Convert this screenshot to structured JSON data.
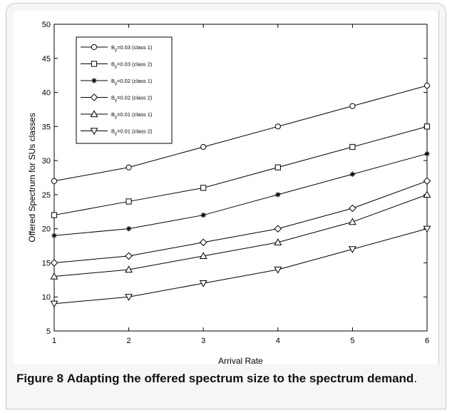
{
  "figure": {
    "label": "Figure 8",
    "caption": "Adapting the offered spectrum size to the spectrum demand",
    "caption_end": "."
  },
  "chart_data": {
    "type": "line",
    "xlabel": "Arrival Rate",
    "ylabel": "Offered Spectrum for SUs classes",
    "xlim": [
      1,
      6
    ],
    "ylim": [
      5,
      50
    ],
    "xticks": [
      1,
      2,
      3,
      4,
      5,
      6
    ],
    "yticks": [
      5,
      10,
      15,
      20,
      25,
      30,
      35,
      40,
      45,
      50
    ],
    "grid": false,
    "legend_position": "top-left",
    "x": [
      1,
      2,
      3,
      4,
      5,
      6
    ],
    "series": [
      {
        "name_main": "B",
        "name_sub": "y",
        "name_rest": "=0.03 (class 1)",
        "marker": "circle",
        "values": [
          27,
          29,
          32,
          35,
          38,
          41
        ]
      },
      {
        "name_main": "B",
        "name_sub": "y",
        "name_rest": "=0.03 (class 2)",
        "marker": "square",
        "values": [
          22,
          24,
          26,
          29,
          32,
          35
        ]
      },
      {
        "name_main": "B",
        "name_sub": "y",
        "name_rest": "=0.02 (class 1)",
        "marker": "star",
        "values": [
          19,
          20,
          22,
          25,
          28,
          31
        ]
      },
      {
        "name_main": "B",
        "name_sub": "y",
        "name_rest": "=0.02 (class 2)",
        "marker": "diamond",
        "values": [
          15,
          16,
          18,
          20,
          23,
          27
        ]
      },
      {
        "name_main": "B",
        "name_sub": "y",
        "name_rest": "=0.01 (class 1)",
        "marker": "triangle-up",
        "values": [
          13,
          14,
          16,
          18,
          21,
          25
        ]
      },
      {
        "name_main": "B",
        "name_sub": "y",
        "name_rest": "=0.01 (class 2)",
        "marker": "triangle-down",
        "values": [
          9,
          10,
          12,
          14,
          17,
          20
        ]
      }
    ]
  }
}
